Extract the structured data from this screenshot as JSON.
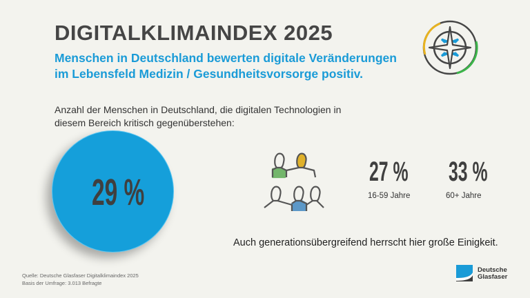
{
  "title": "DIGITALKLIMAINDEX 2025",
  "subtitle": [
    "Menschen in Deutschland bewerten digitale Veränderungen",
    "im Lebensfeld Medizin / Gesundheitsvorsorge positiv."
  ],
  "intro": "Anzahl der Menschen in Deutschland, die digitalen Technologien in diesem Bereich kritisch gegenüberstehen:",
  "total": {
    "value": "29 %",
    "fraction": 0.29
  },
  "groups": [
    {
      "value": "27 %",
      "label": "16-59 Jahre"
    },
    {
      "value": "33 %",
      "label": "60+ Jahre"
    }
  ],
  "note": "Auch generationsübergreifend herrscht hier große Einigkeit.",
  "footer": {
    "source": "Quelle: Deutsche Glasfaser Digitalklimaindex 2025",
    "basis": "Basis der Umfrage: 3.013 Befragte"
  },
  "logo": {
    "line1": "Deutsche",
    "line2": "Glasfaser"
  },
  "icons": [
    "compass-icon",
    "people-group-icon",
    "deutsche-glasfaser-logo"
  ],
  "colors": {
    "blue": "#159fda",
    "yellow": "#e8b320",
    "green": "#3cb54a",
    "person_green": "#73b66b",
    "person_yellow": "#e0b12a",
    "person_blue": "#5c98c8",
    "text": "#3d3d3d"
  }
}
